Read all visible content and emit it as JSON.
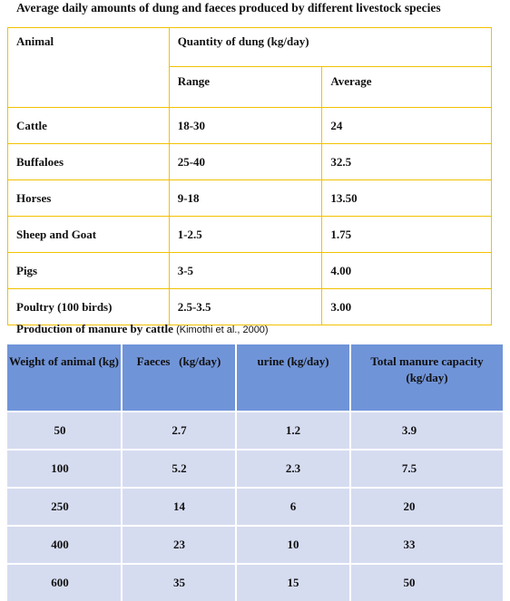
{
  "title1": "Average daily amounts of dung and faeces produced by different livestock species",
  "table1": {
    "header_animal": "Animal",
    "header_quantity": "Quantity of dung (kg/day)",
    "header_range": "Range",
    "header_average": "Average",
    "rows": [
      {
        "animal": "Cattle",
        "range": "18-30",
        "average": "24"
      },
      {
        "animal": "Buffaloes",
        "range": "25-40",
        "average": "32.5"
      },
      {
        "animal": "Horses",
        "range": "9-18",
        "average": "13.50"
      },
      {
        "animal": "Sheep and Goat",
        "range": "1-2.5",
        "average": "1.75"
      },
      {
        "animal": "Pigs",
        "range": "3-5",
        "average": "4.00"
      },
      {
        "animal": "Poultry (100 birds)",
        "range": "2.5-3.5",
        "average": "3.00"
      }
    ]
  },
  "title2": "Production of manure by cattle",
  "title2_cite": "(Kimothi et al., 2000)",
  "table2": {
    "headers": [
      "Weight of animal (kg)",
      "Faeces   (kg/day)",
      "urine (kg/day)",
      "Total manure capacity (kg/day)"
    ],
    "rows": [
      [
        "50",
        "2.7",
        "1.2",
        "3.9"
      ],
      [
        "100",
        "5.2",
        "2.3",
        "7.5"
      ],
      [
        "250",
        "14",
        "6",
        "20"
      ],
      [
        "400",
        "23",
        "10",
        "33"
      ],
      [
        "600",
        "35",
        "15",
        "50"
      ]
    ]
  }
}
